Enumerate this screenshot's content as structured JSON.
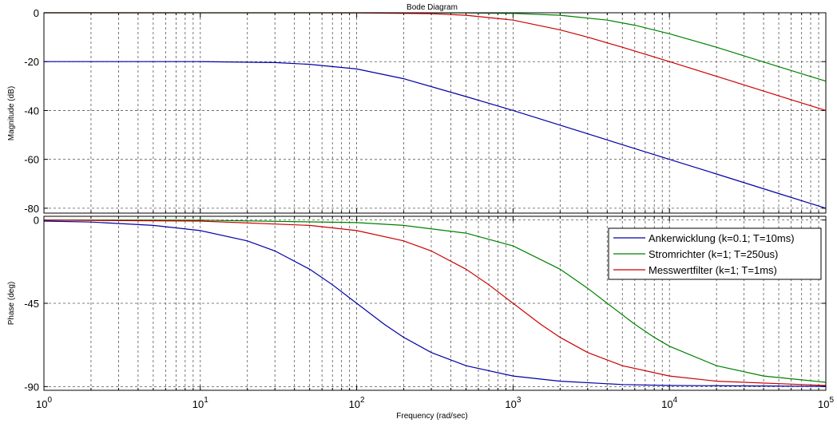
{
  "figure": {
    "title": "Bode Diagram",
    "xlabel": "Frequency  (rad/sec)"
  },
  "chart_data": [
    {
      "type": "line",
      "panel": "magnitude",
      "ylabel": "Magnitude (dB)",
      "xscale": "log",
      "xlim": [
        1,
        100000
      ],
      "ylim": [
        -82,
        0
      ],
      "yticks": [
        0,
        -20,
        -40,
        -60,
        -80
      ],
      "xticks": [
        1,
        10,
        100,
        1000,
        10000,
        100000
      ],
      "xtick_labels": [
        {
          "base": "10",
          "exp": "0"
        },
        {
          "base": "10",
          "exp": "1"
        },
        {
          "base": "10",
          "exp": "2"
        },
        {
          "base": "10",
          "exp": "3"
        },
        {
          "base": "10",
          "exp": "4"
        },
        {
          "base": "10",
          "exp": "5"
        }
      ],
      "grid": true,
      "series": [
        {
          "name": "Ankerwicklung (k=0.1; T=10ms)",
          "color": "#0000a8",
          "x": [
            1,
            10,
            30,
            50,
            100,
            200,
            500,
            1000,
            2000,
            5000,
            10000,
            20000,
            50000,
            100000
          ],
          "y": [
            -20,
            -20,
            -20.4,
            -21.1,
            -23,
            -27,
            -34.3,
            -40,
            -46,
            -54,
            -60,
            -66,
            -74,
            -80
          ]
        },
        {
          "name": "Stromrichter (k=1; T=250us)",
          "color": "#008000",
          "x": [
            1,
            100,
            500,
            1000,
            2000,
            4000,
            6000,
            10000,
            20000,
            50000,
            100000
          ],
          "y": [
            0,
            0,
            -0.07,
            -0.27,
            -1,
            -3,
            -5.1,
            -8.6,
            -14.1,
            -22.1,
            -28
          ]
        },
        {
          "name": "Messwertfilter (k=1; T=1ms)",
          "color": "#cc0000",
          "x": [
            1,
            100,
            300,
            500,
            1000,
            2000,
            3000,
            5000,
            10000,
            20000,
            50000,
            100000
          ],
          "y": [
            0,
            -0.04,
            -0.4,
            -1,
            -3,
            -7,
            -10,
            -14.1,
            -20,
            -26,
            -34,
            -40
          ]
        }
      ]
    },
    {
      "type": "line",
      "panel": "phase",
      "ylabel": "Phase (deg)",
      "xscale": "log",
      "xlim": [
        1,
        100000
      ],
      "ylim": [
        -92,
        2
      ],
      "yticks": [
        0,
        -45,
        -90
      ],
      "xticks": [
        1,
        10,
        100,
        1000,
        10000,
        100000
      ],
      "grid": true,
      "legend": "top-right",
      "series": [
        {
          "name": "Ankerwicklung (k=0.1; T=10ms)",
          "color": "#0000a8",
          "x": [
            1,
            2,
            5,
            10,
            20,
            30,
            50,
            70,
            100,
            150,
            200,
            300,
            500,
            1000,
            2000,
            5000,
            10000,
            100000
          ],
          "y": [
            -0.6,
            -1.1,
            -2.9,
            -5.7,
            -11.3,
            -16.7,
            -26.6,
            -35,
            -45,
            -56.3,
            -63.4,
            -71.6,
            -78.7,
            -84.3,
            -87.1,
            -88.9,
            -89.4,
            -89.9
          ]
        },
        {
          "name": "Stromrichter (k=1; T=250us)",
          "color": "#008000",
          "x": [
            1,
            10,
            100,
            200,
            500,
            1000,
            2000,
            3000,
            4000,
            6000,
            8000,
            10000,
            20000,
            40000,
            100000
          ],
          "y": [
            0,
            -0.1,
            -1.4,
            -2.9,
            -7.1,
            -14,
            -26.6,
            -36.9,
            -45,
            -56.3,
            -63.4,
            -68.2,
            -78.7,
            -84.3,
            -87.7
          ]
        },
        {
          "name": "Messwertfilter (k=1; T=1ms)",
          "color": "#cc0000",
          "x": [
            1,
            10,
            50,
            100,
            200,
            300,
            500,
            700,
            1000,
            1500,
            2000,
            3000,
            5000,
            10000,
            20000,
            100000
          ],
          "y": [
            -0.06,
            -0.6,
            -2.9,
            -5.7,
            -11.3,
            -16.7,
            -26.6,
            -35,
            -45,
            -56.3,
            -63.4,
            -71.6,
            -78.7,
            -84.3,
            -87.1,
            -89.4
          ]
        }
      ]
    }
  ]
}
